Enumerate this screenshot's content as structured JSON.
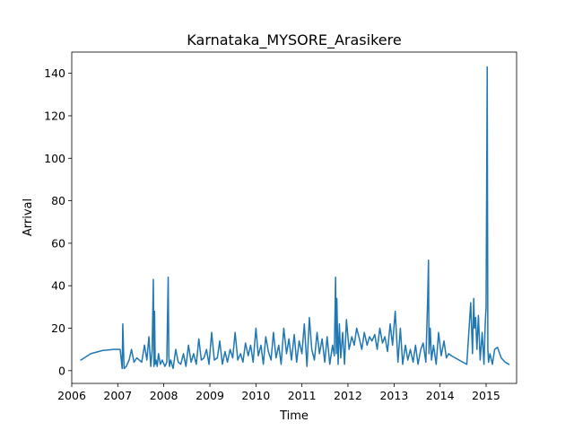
{
  "chart_data": {
    "type": "line",
    "title": "Karnataka_MYSORE_Arasikere",
    "xlabel": "Time",
    "ylabel": "Arrival",
    "xlim": [
      "2006-01-01",
      "2015-08-31"
    ],
    "ylim": [
      -6,
      150
    ],
    "x_ticks": [
      "2006",
      "2007",
      "2008",
      "2009",
      "2010",
      "2011",
      "2012",
      "2013",
      "2014",
      "2015"
    ],
    "y_ticks": [
      0,
      20,
      40,
      60,
      80,
      100,
      120,
      140
    ],
    "grid": false,
    "line_color": "#1f77b4",
    "series": [
      {
        "x": [
          "2006-03-15",
          "2006-06-01",
          "2006-09-01",
          "2006-12-01",
          "2007-01-01",
          "2007-01-20",
          "2007-02-05",
          "2007-02-10",
          "2007-02-20",
          "2007-03-10",
          "2007-04-01",
          "2007-04-20",
          "2007-05-10",
          "2007-06-01",
          "2007-06-20",
          "2007-07-10",
          "2007-08-01",
          "2007-08-20",
          "2007-09-05",
          "2007-09-20",
          "2007-10-01",
          "2007-10-10",
          "2007-10-15",
          "2007-10-20",
          "2007-10-25",
          "2007-11-01",
          "2007-11-10",
          "2007-11-20",
          "2007-12-05",
          "2007-12-20",
          "2008-01-10",
          "2008-01-25",
          "2008-02-05",
          "2008-02-10",
          "2008-02-15",
          "2008-02-25",
          "2008-03-15",
          "2008-04-05",
          "2008-04-25",
          "2008-05-15",
          "2008-06-05",
          "2008-06-25",
          "2008-07-15",
          "2008-08-05",
          "2008-08-25",
          "2008-09-15",
          "2008-10-05",
          "2008-10-25",
          "2008-11-15",
          "2008-12-05",
          "2008-12-25",
          "2009-01-15",
          "2009-02-05",
          "2009-03-01",
          "2009-03-20",
          "2009-04-10",
          "2009-05-01",
          "2009-05-20",
          "2009-06-10",
          "2009-07-01",
          "2009-07-20",
          "2009-08-10",
          "2009-09-01",
          "2009-09-20",
          "2009-10-10",
          "2009-11-01",
          "2009-11-20",
          "2009-12-10",
          "2010-01-01",
          "2010-01-20",
          "2010-02-10",
          "2010-03-01",
          "2010-03-20",
          "2010-04-10",
          "2010-05-01",
          "2010-05-20",
          "2010-06-10",
          "2010-07-01",
          "2010-07-20",
          "2010-08-10",
          "2010-09-01",
          "2010-09-20",
          "2010-10-10",
          "2010-11-01",
          "2010-11-20",
          "2010-12-10",
          "2011-01-01",
          "2011-01-20",
          "2011-02-10",
          "2011-03-01",
          "2011-03-20",
          "2011-04-10",
          "2011-05-01",
          "2011-05-20",
          "2011-06-10",
          "2011-07-01",
          "2011-07-20",
          "2011-08-10",
          "2011-09-01",
          "2011-09-15",
          "2011-09-25",
          "2011-10-01",
          "2011-10-05",
          "2011-10-15",
          "2011-10-25",
          "2011-11-05",
          "2011-11-20",
          "2011-12-05",
          "2011-12-20",
          "2012-01-10",
          "2012-02-01",
          "2012-02-20",
          "2012-03-10",
          "2012-04-01",
          "2012-04-20",
          "2012-05-10",
          "2012-06-01",
          "2012-06-20",
          "2012-07-10",
          "2012-08-01",
          "2012-08-20",
          "2012-09-10",
          "2012-10-01",
          "2012-10-20",
          "2012-11-10",
          "2012-12-01",
          "2012-12-20",
          "2013-01-10",
          "2013-02-01",
          "2013-02-20",
          "2013-03-10",
          "2013-04-01",
          "2013-04-20",
          "2013-05-10",
          "2013-06-01",
          "2013-06-20",
          "2013-07-10",
          "2013-08-01",
          "2013-08-20",
          "2013-09-10",
          "2013-09-25",
          "2013-10-01",
          "2013-10-05",
          "2013-10-15",
          "2013-10-25",
          "2013-11-10",
          "2013-12-01",
          "2013-12-20",
          "2014-01-10",
          "2014-02-01",
          "2014-02-20",
          "2014-03-10",
          "2014-04-01",
          "2014-05-01",
          "2014-06-01",
          "2014-07-01",
          "2014-08-01",
          "2014-09-01",
          "2014-09-15",
          "2014-09-25",
          "2014-10-01",
          "2014-10-10",
          "2014-10-20",
          "2014-11-01",
          "2014-11-15",
          "2014-12-01",
          "2014-12-15",
          "2014-12-25",
          "2015-01-01",
          "2015-01-10",
          "2015-01-15",
          "2015-01-20",
          "2015-02-01",
          "2015-02-20",
          "2015-03-10",
          "2015-04-01",
          "2015-05-01",
          "2015-06-01",
          "2015-07-01"
        ],
        "y": [
          5,
          8,
          9.5,
          10,
          10,
          10,
          1,
          22,
          1,
          2,
          5,
          10,
          4,
          6,
          5,
          4,
          12,
          5,
          16,
          2,
          10,
          43,
          2,
          28,
          3,
          5,
          2,
          8,
          3,
          5,
          2,
          4,
          44,
          7,
          2,
          5,
          1,
          10,
          4,
          3,
          8,
          2,
          12,
          4,
          8,
          3,
          15,
          5,
          6,
          10,
          3,
          18,
          5,
          6,
          14,
          3,
          9,
          4,
          10,
          6,
          18,
          5,
          8,
          4,
          13,
          7,
          12,
          4,
          20,
          7,
          12,
          3,
          16,
          9,
          5,
          18,
          6,
          12,
          3,
          20,
          8,
          15,
          5,
          17,
          4,
          14,
          8,
          22,
          2,
          25,
          10,
          5,
          18,
          8,
          15,
          4,
          16,
          3,
          12,
          7,
          44,
          8,
          34,
          3,
          22,
          6,
          18,
          3,
          24,
          10,
          16,
          12,
          20,
          15,
          10,
          18,
          12,
          16,
          14,
          17,
          10,
          20,
          13,
          16,
          9,
          22,
          12,
          28,
          4,
          20,
          3,
          12,
          5,
          10,
          4,
          12,
          3,
          10,
          13,
          4,
          35,
          52,
          8,
          20,
          5,
          12,
          3,
          18,
          7,
          14,
          6,
          8,
          7,
          6,
          5,
          4,
          3,
          32,
          8,
          34,
          20,
          25,
          10,
          26,
          5,
          18,
          3,
          22,
          30,
          143,
          10,
          4,
          8,
          3,
          10,
          11,
          6,
          4,
          3
        ]
      }
    ]
  }
}
